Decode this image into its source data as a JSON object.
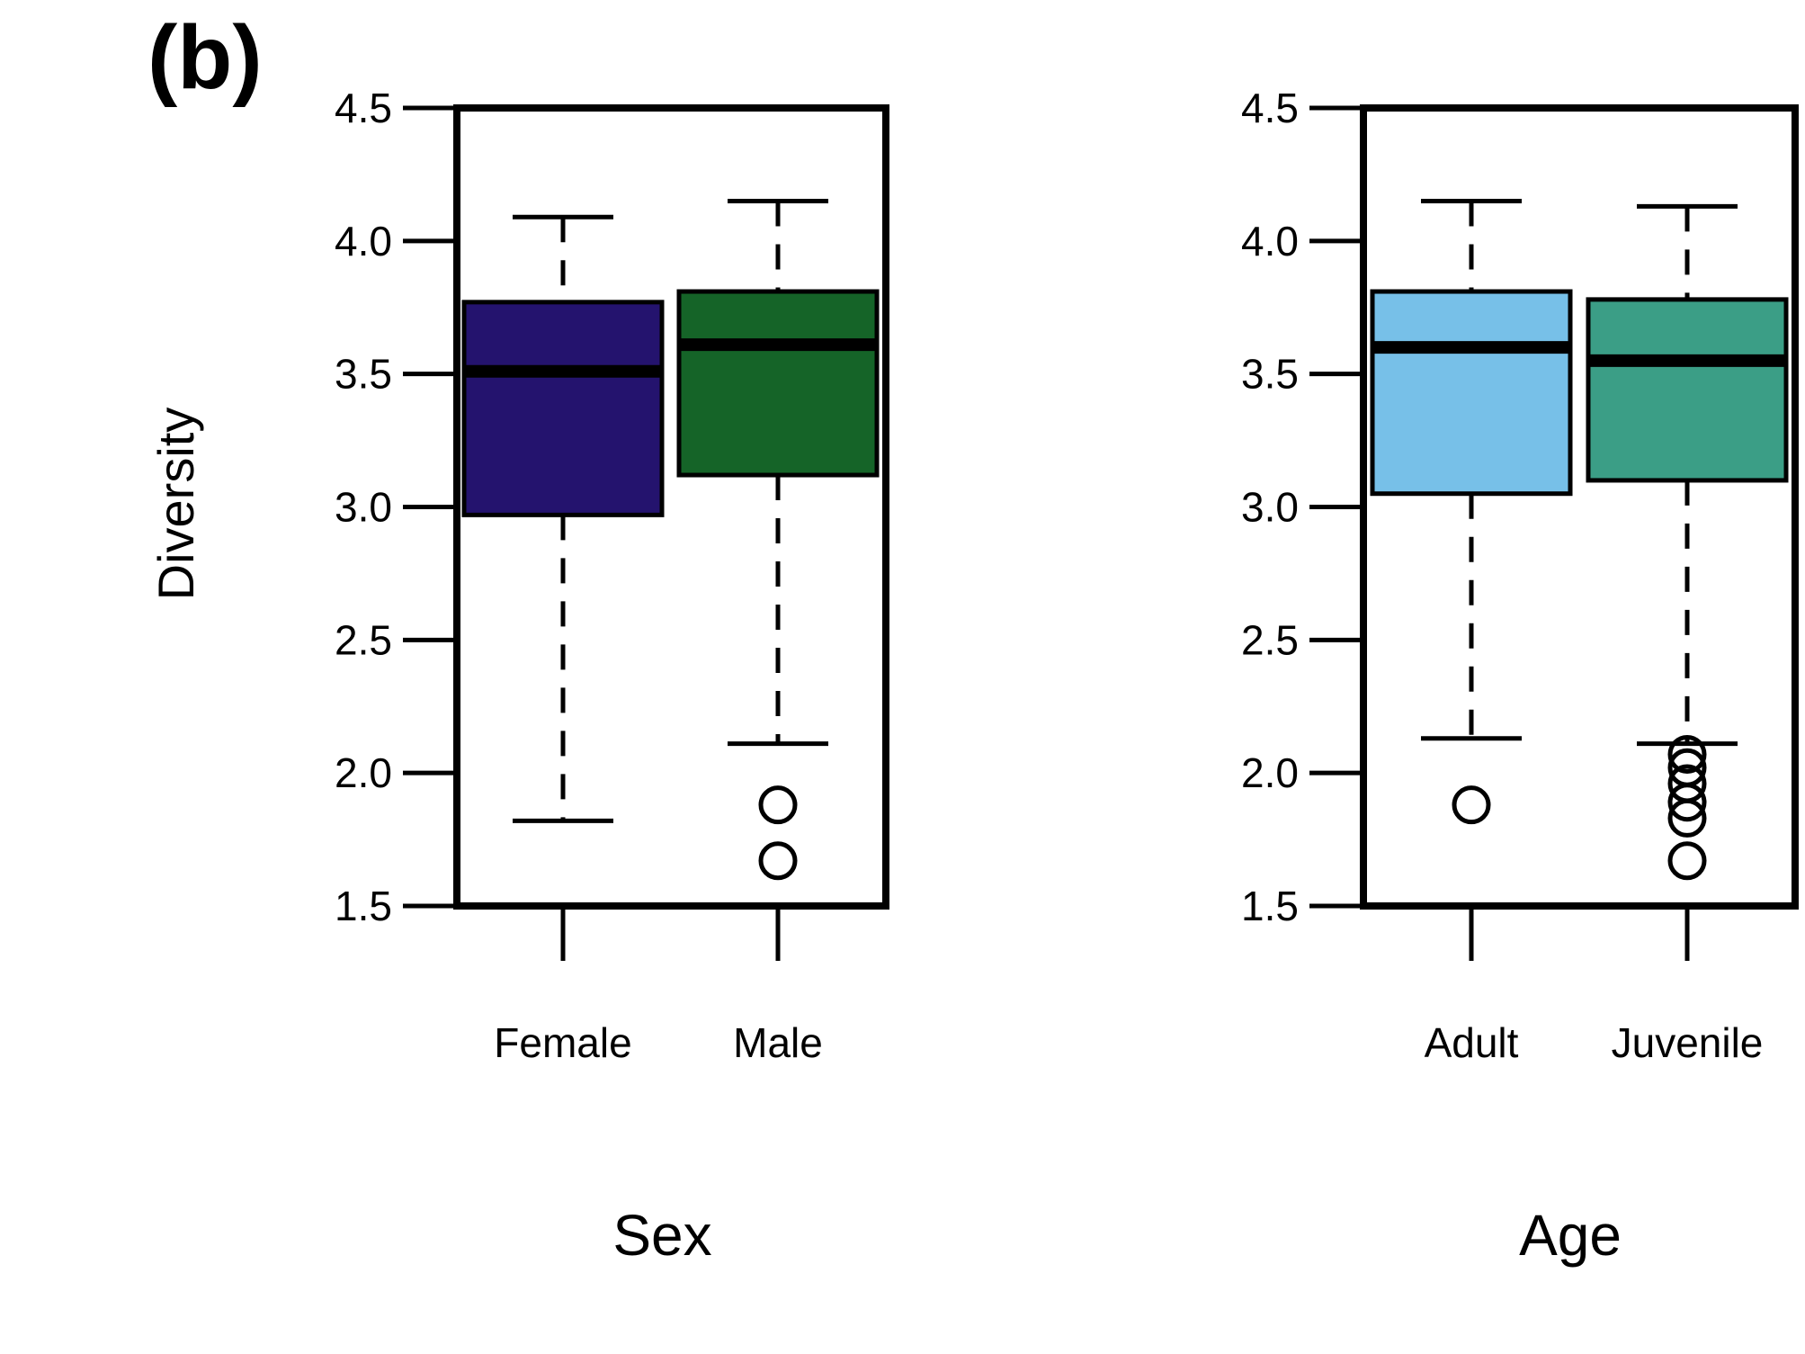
{
  "panel_label": "(b)",
  "ylabel": "Diversity",
  "chart_data": [
    {
      "type": "boxplot",
      "xlabel": "Sex",
      "ylabel": "Diversity",
      "ylim": [
        1.5,
        4.5
      ],
      "yticks": [
        1.5,
        2.0,
        2.5,
        3.0,
        3.5,
        4.0,
        4.5
      ],
      "ytick_labels": [
        "1.5",
        "2.0",
        "2.5",
        "3.0",
        "3.5",
        "4.0",
        "4.5"
      ],
      "categories": [
        "Female",
        "Male"
      ],
      "boxes": [
        {
          "category": "Female",
          "color": "#24136e",
          "whisker_low": 1.82,
          "q1": 2.97,
          "median": 3.51,
          "q3": 3.77,
          "whisker_high": 4.09,
          "outliers": []
        },
        {
          "category": "Male",
          "color": "#156428",
          "whisker_low": 2.11,
          "q1": 3.12,
          "median": 3.61,
          "q3": 3.81,
          "whisker_high": 4.15,
          "outliers": [
            1.88,
            1.67
          ]
        }
      ]
    },
    {
      "type": "boxplot",
      "xlabel": "Age",
      "ylabel": "",
      "ylim": [
        1.5,
        4.5
      ],
      "yticks": [
        1.5,
        2.0,
        2.5,
        3.0,
        3.5,
        4.0,
        4.5
      ],
      "ytick_labels": [
        "1.5",
        "2.0",
        "2.5",
        "3.0",
        "3.5",
        "4.0",
        "4.5"
      ],
      "categories": [
        "Adult",
        "Juvenile"
      ],
      "boxes": [
        {
          "category": "Adult",
          "color": "#77c0e8",
          "whisker_low": 2.13,
          "q1": 3.05,
          "median": 3.6,
          "q3": 3.81,
          "whisker_high": 4.15,
          "outliers": [
            1.88
          ]
        },
        {
          "category": "Juvenile",
          "color": "#3b9e86",
          "whisker_low": 2.11,
          "q1": 3.1,
          "median": 3.55,
          "q3": 3.78,
          "whisker_high": 4.13,
          "outliers": [
            2.07,
            2.02,
            1.96,
            1.89,
            1.83,
            1.67
          ]
        }
      ]
    }
  ]
}
